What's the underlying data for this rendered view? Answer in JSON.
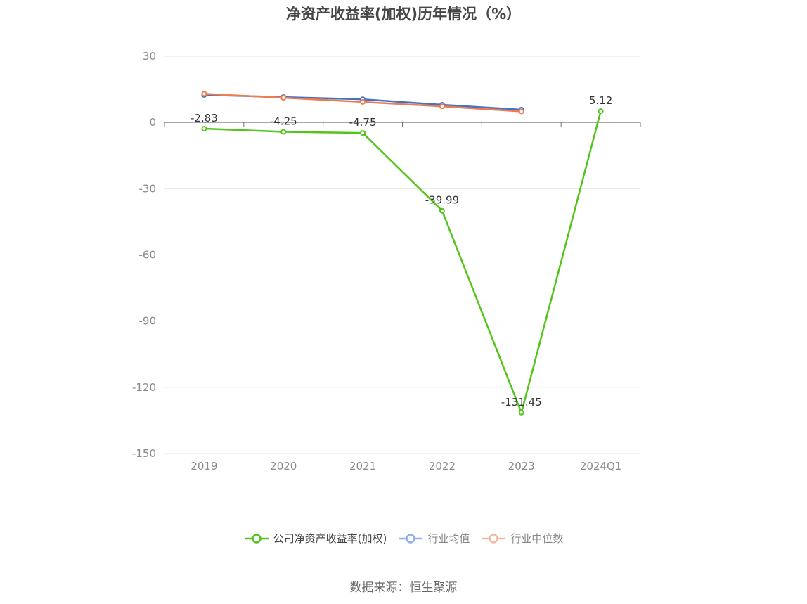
{
  "chart_data": {
    "type": "line",
    "title": "净资产收益率(加权)历年情况（%）",
    "categories": [
      "2019",
      "2020",
      "2021",
      "2022",
      "2023",
      "2024Q1"
    ],
    "ylim": [
      -150,
      30
    ],
    "yticks": [
      30,
      0,
      -30,
      -60,
      -90,
      -120,
      -150
    ],
    "grid": true,
    "legend_position": "bottom",
    "series": [
      {
        "name": "公司净资产收益率(加权)",
        "color": "#52c41a",
        "values": [
          -2.83,
          -4.25,
          -4.75,
          -39.99,
          -131.45,
          5.12
        ],
        "labels": [
          "-2.83",
          "-4.25",
          "-4.75",
          "-39.99",
          "-131.45",
          "5.12"
        ]
      },
      {
        "name": "行业均值",
        "color": "#4472c4",
        "values": [
          12.5,
          11.5,
          10.5,
          8.0,
          5.8,
          null
        ]
      },
      {
        "name": "行业中位数",
        "color": "#ed7d50",
        "values": [
          13.0,
          11.2,
          9.3,
          7.3,
          5.0,
          null
        ]
      }
    ]
  },
  "legend": {
    "items": [
      {
        "label": "公司净资产收益率(加权)",
        "color": "#52c41a"
      },
      {
        "label": "行业均值",
        "color": "#8fb1e8"
      },
      {
        "label": "行业中位数",
        "color": "#f4b9a3"
      }
    ]
  },
  "source": "数据来源：恒生聚源"
}
